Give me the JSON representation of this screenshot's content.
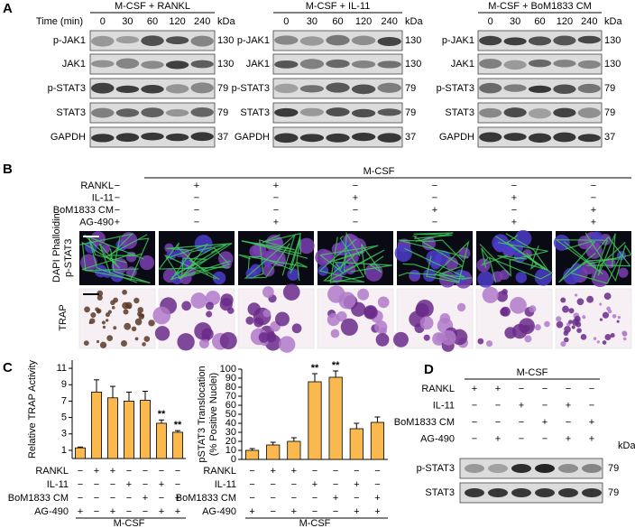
{
  "panel_a": {
    "label": "A",
    "time_label": "Time (min)",
    "kda_label": "kDa",
    "groups": [
      {
        "title": "M-CSF + RANKL",
        "times": [
          0,
          30,
          60,
          120,
          240
        ],
        "rows": [
          {
            "name": "p-JAK1",
            "kda": 130
          },
          {
            "name": "JAK1",
            "kda": 130
          },
          {
            "name": "p-STAT3",
            "kda": 79
          },
          {
            "name": "STAT3",
            "kda": 79
          },
          {
            "name": "GAPDH",
            "kda": 37
          }
        ]
      },
      {
        "title": "M-CSF + IL-11",
        "times": [
          0,
          30,
          60,
          120,
          240
        ],
        "rows": [
          {
            "name": "p-JAK1",
            "kda": 130
          },
          {
            "name": "JAK1",
            "kda": 130
          },
          {
            "name": "p-STAT3",
            "kda": 79
          },
          {
            "name": "STAT3",
            "kda": 79
          },
          {
            "name": "GAPDH",
            "kda": 37
          }
        ]
      },
      {
        "title": "M-CSF + BoM1833 CM",
        "times": [
          0,
          30,
          60,
          120,
          240
        ],
        "rows": [
          {
            "name": "p-JAK1",
            "kda": 130
          },
          {
            "name": "JAK1",
            "kda": 130
          },
          {
            "name": "p-STAT3",
            "kda": 79
          },
          {
            "name": "STAT3",
            "kda": 79
          },
          {
            "name": "GAPDH",
            "kda": 37
          }
        ]
      }
    ]
  },
  "panel_b": {
    "label": "B",
    "group_label": "M-CSF",
    "conditions": [
      {
        "label": "RANKL",
        "signs": [
          "−",
          "+",
          "+",
          "−",
          "−",
          "−",
          "−"
        ]
      },
      {
        "label": "IL-11",
        "signs": [
          "−",
          "−",
          "−",
          "+",
          "−",
          "+",
          "−"
        ]
      },
      {
        "label": "BoM1833 CM",
        "signs": [
          "−",
          "−",
          "−",
          "−",
          "+",
          "−",
          "+"
        ]
      },
      {
        "label": "AG-490",
        "signs": [
          "+",
          "−",
          "+",
          "−",
          "−",
          "+",
          "+"
        ]
      }
    ],
    "stains": [
      {
        "text": "DAPI",
        "color": "#2b2bff"
      },
      {
        "text": "Phalloidin",
        "color": "#1fc01f"
      },
      {
        "text": "p-STAT3",
        "color": "#e0209a"
      }
    ],
    "trap_label": "TRAP"
  },
  "panel_c": {
    "label": "C"
  },
  "chart_data": [
    {
      "type": "bar",
      "y_label": [
        "Relative TRAP Activity"
      ],
      "values": [
        1.3,
        8.1,
        7.4,
        7.0,
        7.1,
        4.3,
        3.2
      ],
      "errors": [
        0.1,
        1.5,
        1.4,
        1.1,
        1.1,
        0.4,
        0.2
      ],
      "significance": [
        null,
        null,
        null,
        null,
        null,
        "**",
        "**"
      ],
      "ylim": [
        0,
        12
      ],
      "yticks": [
        1,
        3,
        5,
        7,
        9,
        11
      ],
      "color": "#f9b94e",
      "conditions": [
        {
          "label": "RANKL",
          "signs": [
            "−",
            "+",
            "+",
            "−",
            "−",
            "−",
            "−"
          ]
        },
        {
          "label": "IL-11",
          "signs": [
            "−",
            "−",
            "−",
            "+",
            "−",
            "+",
            "−"
          ]
        },
        {
          "label": "BoM1833 CM",
          "signs": [
            "−",
            "−",
            "−",
            "−",
            "+",
            "−",
            "+"
          ]
        },
        {
          "label": "AG-490",
          "signs": [
            "+",
            "−",
            "+",
            "−",
            "−",
            "+",
            "+"
          ]
        }
      ],
      "group_label": "M-CSF"
    },
    {
      "type": "bar",
      "y_label": [
        "pSTAT3 Translocation",
        "(% Positive Nuclei)"
      ],
      "values": [
        10,
        16,
        20,
        86,
        91,
        34,
        41
      ],
      "errors": [
        2,
        3,
        4,
        9,
        7,
        6,
        6
      ],
      "significance": [
        null,
        null,
        null,
        "**",
        "**",
        null,
        null
      ],
      "ylim": [
        0,
        100
      ],
      "yticks": [
        0,
        10,
        20,
        30,
        40,
        50,
        60,
        70,
        80,
        90,
        100
      ],
      "color": "#f9b94e",
      "conditions": [
        {
          "label": "RANKL",
          "signs": [
            "−",
            "+",
            "+",
            "−",
            "−",
            "−",
            "−"
          ]
        },
        {
          "label": "IL-11",
          "signs": [
            "−",
            "−",
            "−",
            "+",
            "−",
            "+",
            "−"
          ]
        },
        {
          "label": "BoM1833 CM",
          "signs": [
            "−",
            "−",
            "−",
            "−",
            "+",
            "−",
            "+"
          ]
        },
        {
          "label": "AG-490",
          "signs": [
            "+",
            "−",
            "+",
            "−",
            "−",
            "+",
            "+"
          ]
        }
      ],
      "group_label": "M-CSF"
    }
  ],
  "panel_d": {
    "label": "D",
    "group_label": "M-CSF",
    "kda_label": "kDa",
    "conditions": [
      {
        "label": "RANKL",
        "signs": [
          "+",
          "+",
          "−",
          "−",
          "−",
          "−"
        ]
      },
      {
        "label": "IL-11",
        "signs": [
          "−",
          "−",
          "+",
          "−",
          "+",
          "−"
        ]
      },
      {
        "label": "BoM1833 CM",
        "signs": [
          "−",
          "−",
          "−",
          "+",
          "−",
          "+"
        ]
      },
      {
        "label": "AG-490",
        "signs": [
          "−",
          "+",
          "−",
          "−",
          "+",
          "+"
        ]
      }
    ],
    "rows": [
      {
        "name": "p-STAT3",
        "kda": 79
      },
      {
        "name": "STAT3",
        "kda": 79
      }
    ]
  }
}
